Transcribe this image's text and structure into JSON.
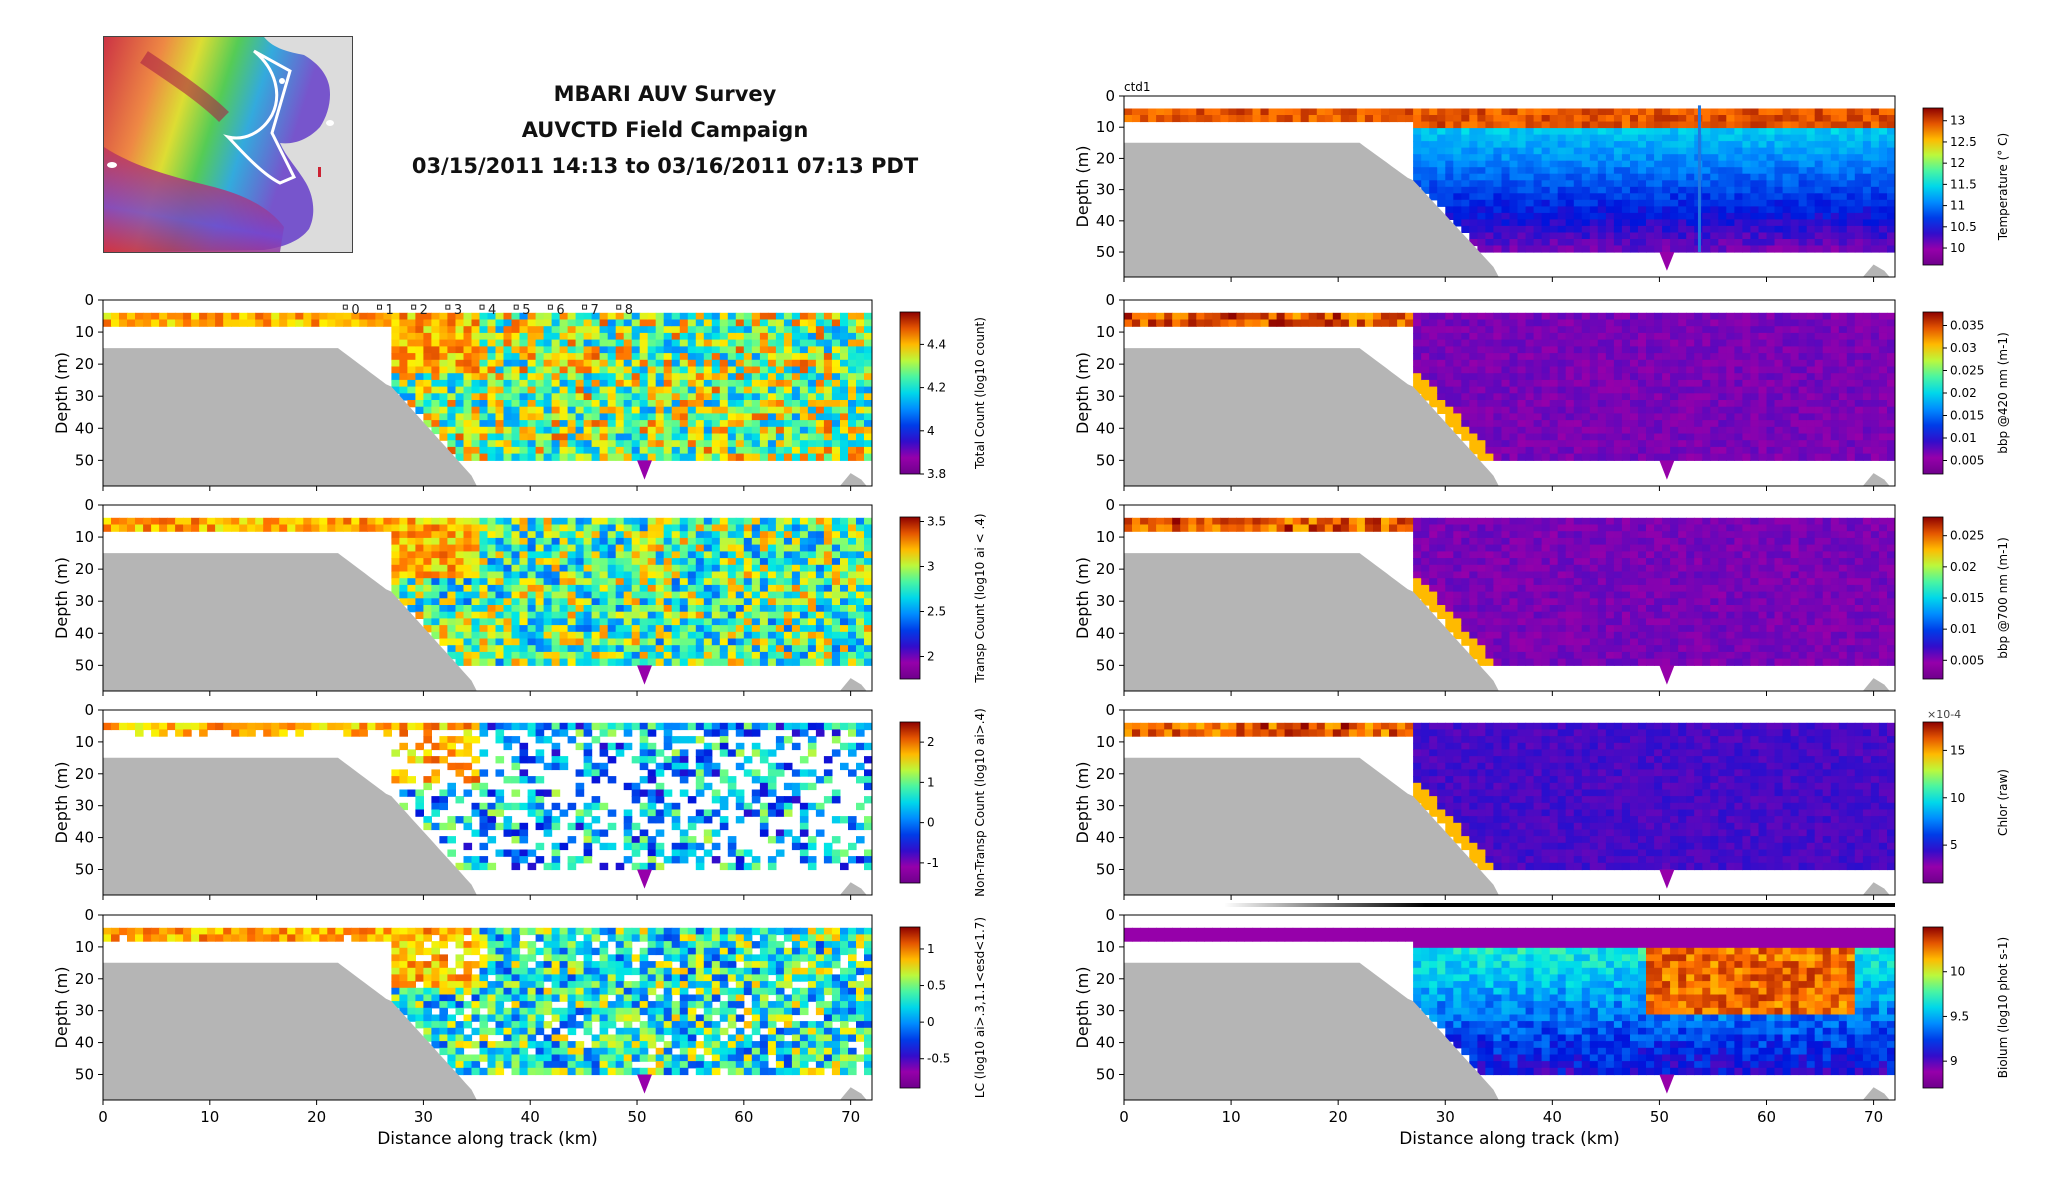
{
  "header": {
    "line1": "MBARI AUV Survey",
    "line2": "AUVCTD Field Campaign",
    "line3": "03/15/2011 14:13 to 03/16/2011 07:13 PDT"
  },
  "chart_data": [
    {
      "type": "heatmap",
      "panel": "left-1",
      "title": "",
      "xlabel": "",
      "ylabel": "Depth (m)",
      "xlim": [
        0,
        72
      ],
      "ylim": [
        58,
        0
      ],
      "yticks": [
        0,
        10,
        20,
        30,
        40,
        50
      ],
      "colorbar": {
        "label": "Total Count (log10 count)",
        "ticks": [
          3.8,
          4,
          4.2,
          4.4
        ],
        "range": [
          3.8,
          4.55
        ]
      },
      "profile_labels": [
        "0",
        "1",
        "2",
        "3",
        "4",
        "5",
        "6",
        "7",
        "8"
      ]
    },
    {
      "type": "heatmap",
      "panel": "left-2",
      "title": "",
      "xlabel": "",
      "ylabel": "Depth (m)",
      "xlim": [
        0,
        72
      ],
      "ylim": [
        58,
        0
      ],
      "yticks": [
        0,
        10,
        20,
        30,
        40,
        50
      ],
      "colorbar": {
        "label": "Transp Count (log10 ai < .4)",
        "ticks": [
          2,
          2.5,
          3,
          3.5
        ],
        "range": [
          1.75,
          3.55
        ]
      }
    },
    {
      "type": "heatmap",
      "panel": "left-3",
      "title": "",
      "xlabel": "",
      "ylabel": "Depth (m)",
      "xlim": [
        0,
        72
      ],
      "ylim": [
        58,
        0
      ],
      "yticks": [
        0,
        10,
        20,
        30,
        40,
        50
      ],
      "colorbar": {
        "label": "Non-Transp Count (log10 ai>.4)",
        "ticks": [
          -1,
          0,
          1,
          2
        ],
        "range": [
          -1.5,
          2.5
        ]
      }
    },
    {
      "type": "heatmap",
      "panel": "left-4",
      "title": "",
      "xlabel": "Distance along track (km)",
      "ylabel": "Depth (m)",
      "xlim": [
        0,
        72
      ],
      "ylim": [
        58,
        0
      ],
      "xticks": [
        0,
        10,
        20,
        30,
        40,
        50,
        60,
        70
      ],
      "yticks": [
        0,
        10,
        20,
        30,
        40,
        50
      ],
      "colorbar": {
        "label": "LC (log10 ai>.3,1.1<esd<1.7)",
        "ticks": [
          -0.5,
          0,
          0.5,
          1
        ],
        "range": [
          -0.9,
          1.3
        ]
      }
    },
    {
      "type": "heatmap",
      "panel": "right-1",
      "title": "ctd1",
      "xlabel": "",
      "ylabel": "Depth (m)",
      "xlim": [
        0,
        72
      ],
      "ylim": [
        58,
        0
      ],
      "yticks": [
        0,
        10,
        20,
        30,
        40,
        50
      ],
      "colorbar": {
        "label": "Temperature (° C)",
        "ticks": [
          10,
          10.5,
          11,
          11.5,
          12,
          12.5,
          13
        ],
        "range": [
          9.6,
          13.3
        ]
      }
    },
    {
      "type": "heatmap",
      "panel": "right-2",
      "title": "",
      "xlabel": "",
      "ylabel": "Depth (m)",
      "xlim": [
        0,
        72
      ],
      "ylim": [
        58,
        0
      ],
      "yticks": [
        0,
        10,
        20,
        30,
        40,
        50
      ],
      "colorbar": {
        "label": "bbp @420 nm (m-1)",
        "ticks": [
          0.005,
          0.01,
          0.015,
          0.02,
          0.025,
          0.03,
          0.035
        ],
        "range": [
          0.002,
          0.038
        ]
      }
    },
    {
      "type": "heatmap",
      "panel": "right-3",
      "title": "",
      "xlabel": "",
      "ylabel": "Depth (m)",
      "xlim": [
        0,
        72
      ],
      "ylim": [
        58,
        0
      ],
      "yticks": [
        0,
        10,
        20,
        30,
        40,
        50
      ],
      "colorbar": {
        "label": "bbp @700 nm (m-1)",
        "ticks": [
          0.005,
          0.01,
          0.015,
          0.02,
          0.025
        ],
        "range": [
          0.002,
          0.028
        ]
      }
    },
    {
      "type": "heatmap",
      "panel": "right-4",
      "title": "",
      "xlabel": "",
      "ylabel": "Depth (m)",
      "xlim": [
        0,
        72
      ],
      "ylim": [
        58,
        0
      ],
      "yticks": [
        0,
        10,
        20,
        30,
        40,
        50
      ],
      "colorbar": {
        "label": "Chlor (raw)",
        "ticks": [
          5,
          10,
          15
        ],
        "range": [
          1,
          18
        ],
        "exponent": "×10-4"
      }
    },
    {
      "type": "heatmap",
      "panel": "right-5",
      "title": "",
      "xlabel": "Distance along track (km)",
      "ylabel": "Depth (m)",
      "xlim": [
        0,
        72
      ],
      "ylim": [
        58,
        0
      ],
      "xticks": [
        0,
        10,
        20,
        30,
        40,
        50,
        60,
        70
      ],
      "yticks": [
        0,
        10,
        20,
        30,
        40,
        50
      ],
      "colorbar": {
        "label": "Biolum (log10 phot s-1)",
        "ticks": [
          9,
          9.5,
          10
        ],
        "range": [
          8.7,
          10.5
        ]
      }
    }
  ]
}
